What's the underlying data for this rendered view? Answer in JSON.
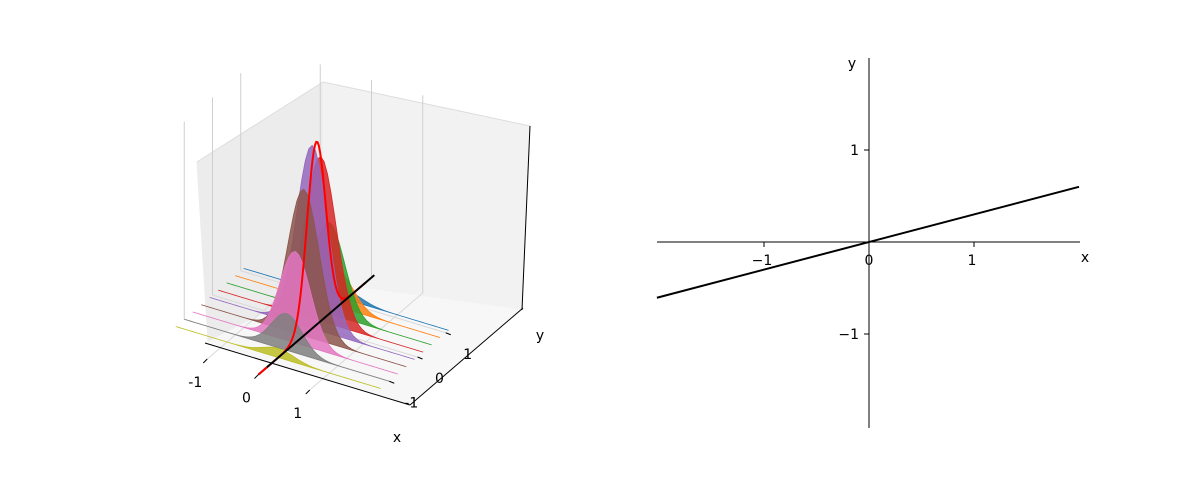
{
  "chart_data": [
    {
      "type": "3d-surface",
      "xlabel": "x",
      "ylabel": "y",
      "xticks": [
        "-1",
        "0",
        "1"
      ],
      "yticks": [
        "-1",
        "0",
        "1"
      ],
      "grid": true,
      "series": [
        {
          "y": 1.1,
          "color": "#1f77b4",
          "peak": 0.05
        },
        {
          "y": 0.8,
          "color": "#ff7f0e",
          "peak": 0.2
        },
        {
          "y": 0.5,
          "color": "#2ca02c",
          "peak": 0.5
        },
        {
          "y": 0.2,
          "color": "#d62728",
          "peak": 0.9
        },
        {
          "y": -0.1,
          "color": "#9467bd",
          "peak": 1.0
        },
        {
          "y": -0.4,
          "color": "#8c564b",
          "peak": 0.8
        },
        {
          "y": -0.7,
          "color": "#e377c2",
          "peak": 0.5
        },
        {
          "y": -1.0,
          "color": "#7f7f7f",
          "peak": 0.2
        },
        {
          "y": -1.3,
          "color": "#bcbd22",
          "peak": 0.05
        }
      ],
      "envelope_color": "#ff0000",
      "baseline_color": "#000000"
    },
    {
      "type": "line",
      "xlabel": "x",
      "ylabel": "y",
      "xticks": [
        "−1",
        "0",
        "1"
      ],
      "yticks": [
        "−1",
        "1"
      ],
      "xlim": [
        -2,
        2
      ],
      "ylim": [
        -2,
        2
      ],
      "line": {
        "slope": 0.3,
        "intercept": 0,
        "color": "#000000"
      }
    }
  ]
}
